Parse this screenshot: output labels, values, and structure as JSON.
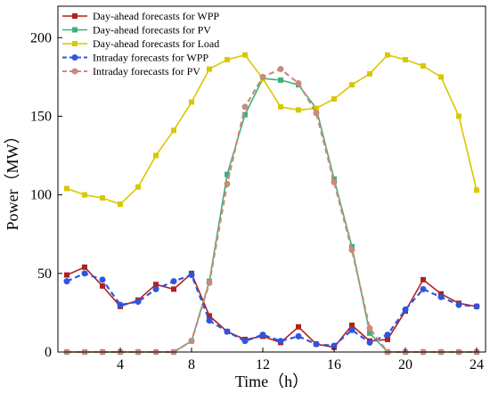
{
  "chart_data": {
    "type": "line",
    "xlabel": "Time（h）",
    "ylabel": "Power（MW）",
    "xlim": [
      0.5,
      24.5
    ],
    "ylim": [
      0,
      220
    ],
    "xticks": [
      4,
      8,
      12,
      16,
      20,
      24
    ],
    "xtick_labels": [
      "4",
      "8",
      "12",
      "16",
      "20",
      "24"
    ],
    "yticks": [
      0,
      50,
      100,
      150,
      200
    ],
    "ytick_labels": [
      "0",
      "50",
      "100",
      "150",
      "200"
    ],
    "grid": false,
    "legend_position": "top-left",
    "x": [
      1,
      2,
      3,
      4,
      5,
      6,
      7,
      8,
      9,
      10,
      11,
      12,
      13,
      14,
      15,
      16,
      17,
      18,
      19,
      20,
      21,
      22,
      23,
      24
    ],
    "series": [
      {
        "name": "Day-ahead forecasts for WPP",
        "color": "#b0221d",
        "marker": "square",
        "dash": false,
        "values": [
          49,
          54,
          42,
          29,
          33,
          43,
          40,
          50,
          23,
          13,
          8,
          10,
          6,
          16,
          5,
          3,
          17,
          7,
          8,
          26,
          46,
          37,
          31,
          29
        ]
      },
      {
        "name": "Day-ahead forecasts for PV",
        "color": "#3faf7c",
        "marker": "square",
        "dash": false,
        "values": [
          0,
          0,
          0,
          0,
          0,
          0,
          0,
          7,
          45,
          113,
          151,
          174,
          173,
          170,
          155,
          110,
          67,
          12,
          0,
          0,
          0,
          0,
          0,
          0
        ]
      },
      {
        "name": "Day-ahead forecasts for Load",
        "color": "#d9c800",
        "marker": "square",
        "dash": false,
        "values": [
          104,
          100,
          98,
          94,
          105,
          125,
          141,
          159,
          180,
          186,
          189,
          174,
          156,
          154,
          155,
          161,
          170,
          177,
          189,
          186,
          182,
          175,
          150,
          103
        ]
      },
      {
        "name": "Intraday forecasts for WPP",
        "color": "#2f55e0",
        "marker": "circle",
        "dash": true,
        "values": [
          45,
          50,
          46,
          30,
          32,
          40,
          45,
          49,
          20,
          13,
          7,
          11,
          7,
          10,
          5,
          4,
          14,
          6,
          11,
          27,
          40,
          35,
          30,
          29
        ]
      },
      {
        "name": "Intraday forecasts for PV",
        "color": "#c98a7c",
        "marker": "circle",
        "dash": true,
        "values": [
          0,
          0,
          0,
          0,
          0,
          0,
          0,
          7,
          44,
          107,
          156,
          175,
          180,
          171,
          152,
          108,
          65,
          15,
          0,
          0,
          0,
          0,
          0,
          0
        ]
      }
    ]
  }
}
